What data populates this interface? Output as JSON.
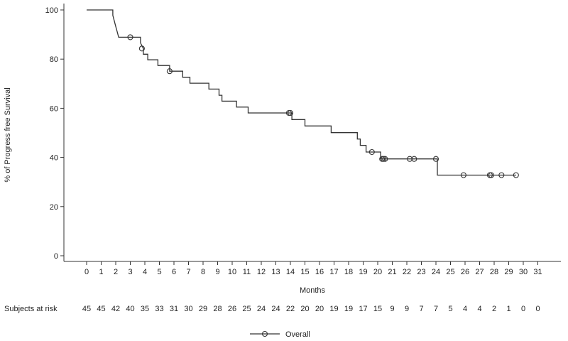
{
  "chart_data": {
    "type": "line",
    "subtype": "kaplan-meier",
    "title": "",
    "xlabel": "Months",
    "ylabel": "% of Progress free Survival",
    "xlim": [
      0,
      31
    ],
    "ylim": [
      0,
      100
    ],
    "x_ticks": [
      0,
      1,
      2,
      3,
      4,
      5,
      6,
      7,
      8,
      9,
      10,
      11,
      12,
      13,
      14,
      15,
      16,
      17,
      18,
      19,
      20,
      21,
      22,
      23,
      24,
      25,
      26,
      27,
      28,
      29,
      30,
      31
    ],
    "y_ticks": [
      0,
      20,
      40,
      60,
      80,
      100
    ],
    "grid": false,
    "legend_position": "bottom-center",
    "series": [
      {
        "name": "Overall",
        "color": "#333333",
        "step_points": [
          [
            0,
            100
          ],
          [
            1.8,
            100
          ],
          [
            1.8,
            97.8
          ],
          [
            1.9,
            95.6
          ],
          [
            2.0,
            93.3
          ],
          [
            2.1,
            91.1
          ],
          [
            2.2,
            88.9
          ],
          [
            3.7,
            88.9
          ],
          [
            3.7,
            86.6
          ],
          [
            3.9,
            84.3
          ],
          [
            3.9,
            82.0
          ],
          [
            4.2,
            82.0
          ],
          [
            4.2,
            79.7
          ],
          [
            4.9,
            79.7
          ],
          [
            4.9,
            77.4
          ],
          [
            5.7,
            77.4
          ],
          [
            5.7,
            75.1
          ],
          [
            6.6,
            75.1
          ],
          [
            6.6,
            72.6
          ],
          [
            7.1,
            72.6
          ],
          [
            7.1,
            70.2
          ],
          [
            8.4,
            70.2
          ],
          [
            8.4,
            67.8
          ],
          [
            9.1,
            67.8
          ],
          [
            9.1,
            65.3
          ],
          [
            9.3,
            65.3
          ],
          [
            9.3,
            62.9
          ],
          [
            10.3,
            62.9
          ],
          [
            10.3,
            60.5
          ],
          [
            11.1,
            60.5
          ],
          [
            11.1,
            58.1
          ],
          [
            14.1,
            58.1
          ],
          [
            14.1,
            55.4
          ],
          [
            15.0,
            55.4
          ],
          [
            15.0,
            52.8
          ],
          [
            16.8,
            52.8
          ],
          [
            16.8,
            50.1
          ],
          [
            18.6,
            50.1
          ],
          [
            18.6,
            47.5
          ],
          [
            18.8,
            47.5
          ],
          [
            18.8,
            44.9
          ],
          [
            19.2,
            44.9
          ],
          [
            19.2,
            42.2
          ],
          [
            20.2,
            42.2
          ],
          [
            20.2,
            39.4
          ],
          [
            24.1,
            39.4
          ],
          [
            24.1,
            32.8
          ],
          [
            29.5,
            32.8
          ]
        ],
        "censor_points": [
          [
            3.0,
            88.9
          ],
          [
            3.8,
            84.3
          ],
          [
            5.7,
            75.1
          ],
          [
            13.9,
            58.1
          ],
          [
            14.0,
            58.1
          ],
          [
            19.6,
            42.2
          ],
          [
            20.3,
            39.4
          ],
          [
            20.4,
            39.4
          ],
          [
            20.5,
            39.4
          ],
          [
            22.2,
            39.4
          ],
          [
            22.5,
            39.4
          ],
          [
            24.0,
            39.4
          ],
          [
            25.9,
            32.8
          ],
          [
            27.7,
            32.8
          ],
          [
            27.8,
            32.8
          ],
          [
            28.5,
            32.8
          ],
          [
            29.5,
            32.8
          ]
        ]
      }
    ],
    "risk_table": {
      "label": "Subjects at risk",
      "values": [
        45,
        45,
        42,
        40,
        35,
        33,
        31,
        30,
        29,
        28,
        26,
        25,
        24,
        24,
        22,
        20,
        20,
        19,
        19,
        17,
        15,
        9,
        9,
        7,
        7,
        5,
        4,
        4,
        2,
        1,
        0,
        0
      ]
    }
  }
}
